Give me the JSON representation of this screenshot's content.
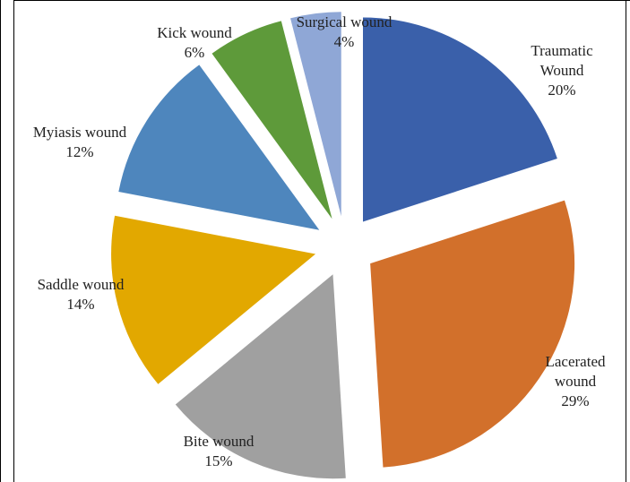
{
  "chart_data": {
    "type": "pie",
    "exploded": true,
    "slices": [
      {
        "label": "Traumatic Wound",
        "label_lines": [
          "Traumatic",
          "Wound"
        ],
        "pct_text": "20%",
        "value": 20,
        "color": "#3A60AA"
      },
      {
        "label": "Lacerated wound",
        "label_lines": [
          "Lacerated",
          "wound"
        ],
        "pct_text": "29%",
        "value": 29,
        "color": "#D2702B"
      },
      {
        "label": "Bite wound",
        "label_lines": [
          "Bite wound"
        ],
        "pct_text": "15%",
        "value": 15,
        "color": "#A0A0A0"
      },
      {
        "label": "Saddle wound",
        "label_lines": [
          "Saddle wound"
        ],
        "pct_text": "14%",
        "value": 14,
        "color": "#E2A800"
      },
      {
        "label": "Myiasis wound",
        "label_lines": [
          "Myiasis wound"
        ],
        "pct_text": "12%",
        "value": 12,
        "color": "#4E86BD"
      },
      {
        "label": "Kick wound",
        "label_lines": [
          "Kick wound"
        ],
        "pct_text": "6%",
        "value": 6,
        "color": "#5E9A3A"
      },
      {
        "label": "Surgical wound",
        "label_lines": [
          "Surgical wound"
        ],
        "pct_text": "4%",
        "value": 4,
        "color": "#8FA7D6"
      }
    ],
    "legend": "none"
  }
}
